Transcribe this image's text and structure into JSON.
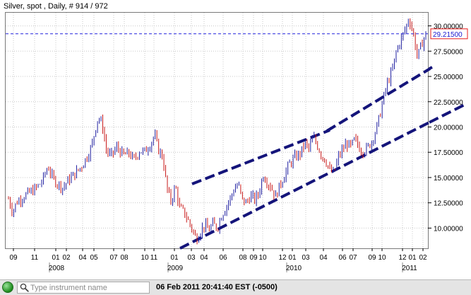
{
  "window": {
    "title": "Silver, spot , Daily, # 914 / 972"
  },
  "chart_data": {
    "type": "candlestick",
    "title": "Silver, spot , Daily, # 914 / 972",
    "instrument": "Silver, spot",
    "period": "Daily",
    "bar_index": "# 914 / 972",
    "ylim": [
      8.0,
      31.3
    ],
    "y_ticks": [
      "10.00000",
      "12.50000",
      "15.00000",
      "17.50000",
      "20.00000",
      "22.50000",
      "25.00000",
      "27.50000",
      "30.00000"
    ],
    "y_tick_values": [
      10.0,
      12.5,
      15.0,
      17.5,
      20.0,
      22.5,
      25.0,
      27.5,
      30.0
    ],
    "x_tick_labels": [
      "09",
      "11",
      "01",
      "02",
      "04",
      "05",
      "07",
      "08",
      "10",
      "11",
      "01",
      "03",
      "04",
      "06",
      "08",
      "09",
      "10",
      "12",
      "01",
      "03",
      "04",
      "06",
      "07",
      "09",
      "10",
      "12",
      "01",
      "02"
    ],
    "year_labels": [
      "2008",
      "2009",
      "2010",
      "2011"
    ],
    "current_price": 29.215,
    "current_price_label": "29.21500",
    "grid": true,
    "price_path": [
      [
        0.0,
        12.9
      ],
      [
        0.01,
        11.6
      ],
      [
        0.02,
        12.6
      ],
      [
        0.035,
        13.1
      ],
      [
        0.05,
        13.5
      ],
      [
        0.065,
        13.9
      ],
      [
        0.08,
        14.6
      ],
      [
        0.095,
        16.1
      ],
      [
        0.105,
        15.0
      ],
      [
        0.115,
        14.5
      ],
      [
        0.13,
        14.0
      ],
      [
        0.145,
        14.8
      ],
      [
        0.16,
        15.4
      ],
      [
        0.175,
        16.1
      ],
      [
        0.19,
        17.2
      ],
      [
        0.2,
        18.2
      ],
      [
        0.21,
        20.2
      ],
      [
        0.215,
        21.0
      ],
      [
        0.225,
        20.2
      ],
      [
        0.235,
        17.6
      ],
      [
        0.245,
        17.1
      ],
      [
        0.26,
        18.0
      ],
      [
        0.275,
        17.2
      ],
      [
        0.29,
        17.4
      ],
      [
        0.3,
        16.7
      ],
      [
        0.315,
        17.7
      ],
      [
        0.325,
        17.5
      ],
      [
        0.34,
        18.3
      ],
      [
        0.35,
        19.2
      ],
      [
        0.36,
        17.7
      ],
      [
        0.37,
        17.0
      ],
      [
        0.38,
        13.8
      ],
      [
        0.39,
        12.6
      ],
      [
        0.4,
        14.2
      ],
      [
        0.41,
        12.0
      ],
      [
        0.42,
        11.6
      ],
      [
        0.43,
        10.8
      ],
      [
        0.44,
        9.9
      ],
      [
        0.45,
        8.9
      ],
      [
        0.46,
        9.7
      ],
      [
        0.47,
        10.3
      ],
      [
        0.48,
        9.8
      ],
      [
        0.49,
        10.4
      ],
      [
        0.5,
        10.0
      ],
      [
        0.51,
        11.2
      ],
      [
        0.52,
        12.0
      ],
      [
        0.53,
        12.8
      ],
      [
        0.54,
        13.8
      ],
      [
        0.55,
        14.4
      ],
      [
        0.56,
        12.8
      ],
      [
        0.57,
        12.5
      ],
      [
        0.58,
        13.2
      ],
      [
        0.59,
        12.8
      ],
      [
        0.6,
        13.4
      ],
      [
        0.61,
        15.3
      ],
      [
        0.62,
        14.6
      ],
      [
        0.63,
        14.0
      ],
      [
        0.64,
        13.1
      ],
      [
        0.65,
        14.2
      ],
      [
        0.66,
        15.1
      ],
      [
        0.67,
        16.1
      ],
      [
        0.68,
        16.7
      ],
      [
        0.69,
        17.1
      ],
      [
        0.7,
        17.4
      ],
      [
        0.71,
        18.4
      ],
      [
        0.72,
        17.8
      ],
      [
        0.73,
        19.0
      ],
      [
        0.74,
        18.2
      ],
      [
        0.75,
        17.2
      ],
      [
        0.76,
        16.7
      ],
      [
        0.77,
        15.7
      ],
      [
        0.78,
        15.4
      ],
      [
        0.79,
        17.0
      ],
      [
        0.8,
        17.7
      ],
      [
        0.81,
        18.4
      ],
      [
        0.82,
        18.0
      ],
      [
        0.83,
        18.8
      ],
      [
        0.84,
        18.0
      ],
      [
        0.85,
        17.6
      ],
      [
        0.86,
        17.9
      ],
      [
        0.87,
        18.6
      ],
      [
        0.88,
        19.6
      ],
      [
        0.89,
        21.2
      ],
      [
        0.9,
        23.1
      ],
      [
        0.91,
        24.6
      ],
      [
        0.92,
        25.6
      ],
      [
        0.93,
        27.6
      ],
      [
        0.94,
        28.6
      ],
      [
        0.95,
        29.6
      ],
      [
        0.96,
        30.8
      ],
      [
        0.97,
        29.2
      ],
      [
        0.98,
        26.9
      ],
      [
        0.99,
        28.2
      ],
      [
        1.0,
        29.2
      ]
    ]
  },
  "search": {
    "placeholder": "Type instrument name",
    "value": ""
  },
  "status_bar": {
    "timestamp": "06 Feb 2011 20:41:40  EST (-0500)"
  },
  "colors": {
    "up_candle": "#1f1fa0",
    "down_candle": "#c81818",
    "trendline": "#14147a",
    "price_line": "#2222dd",
    "price_tag_border": "#e81c1c",
    "price_tag_text": "#1a1ad0",
    "grid": "#c8c8c8",
    "status_icon": "#2aa32a"
  },
  "icons": {
    "status": "green-status-dot-icon",
    "search": "magnifier-icon"
  }
}
